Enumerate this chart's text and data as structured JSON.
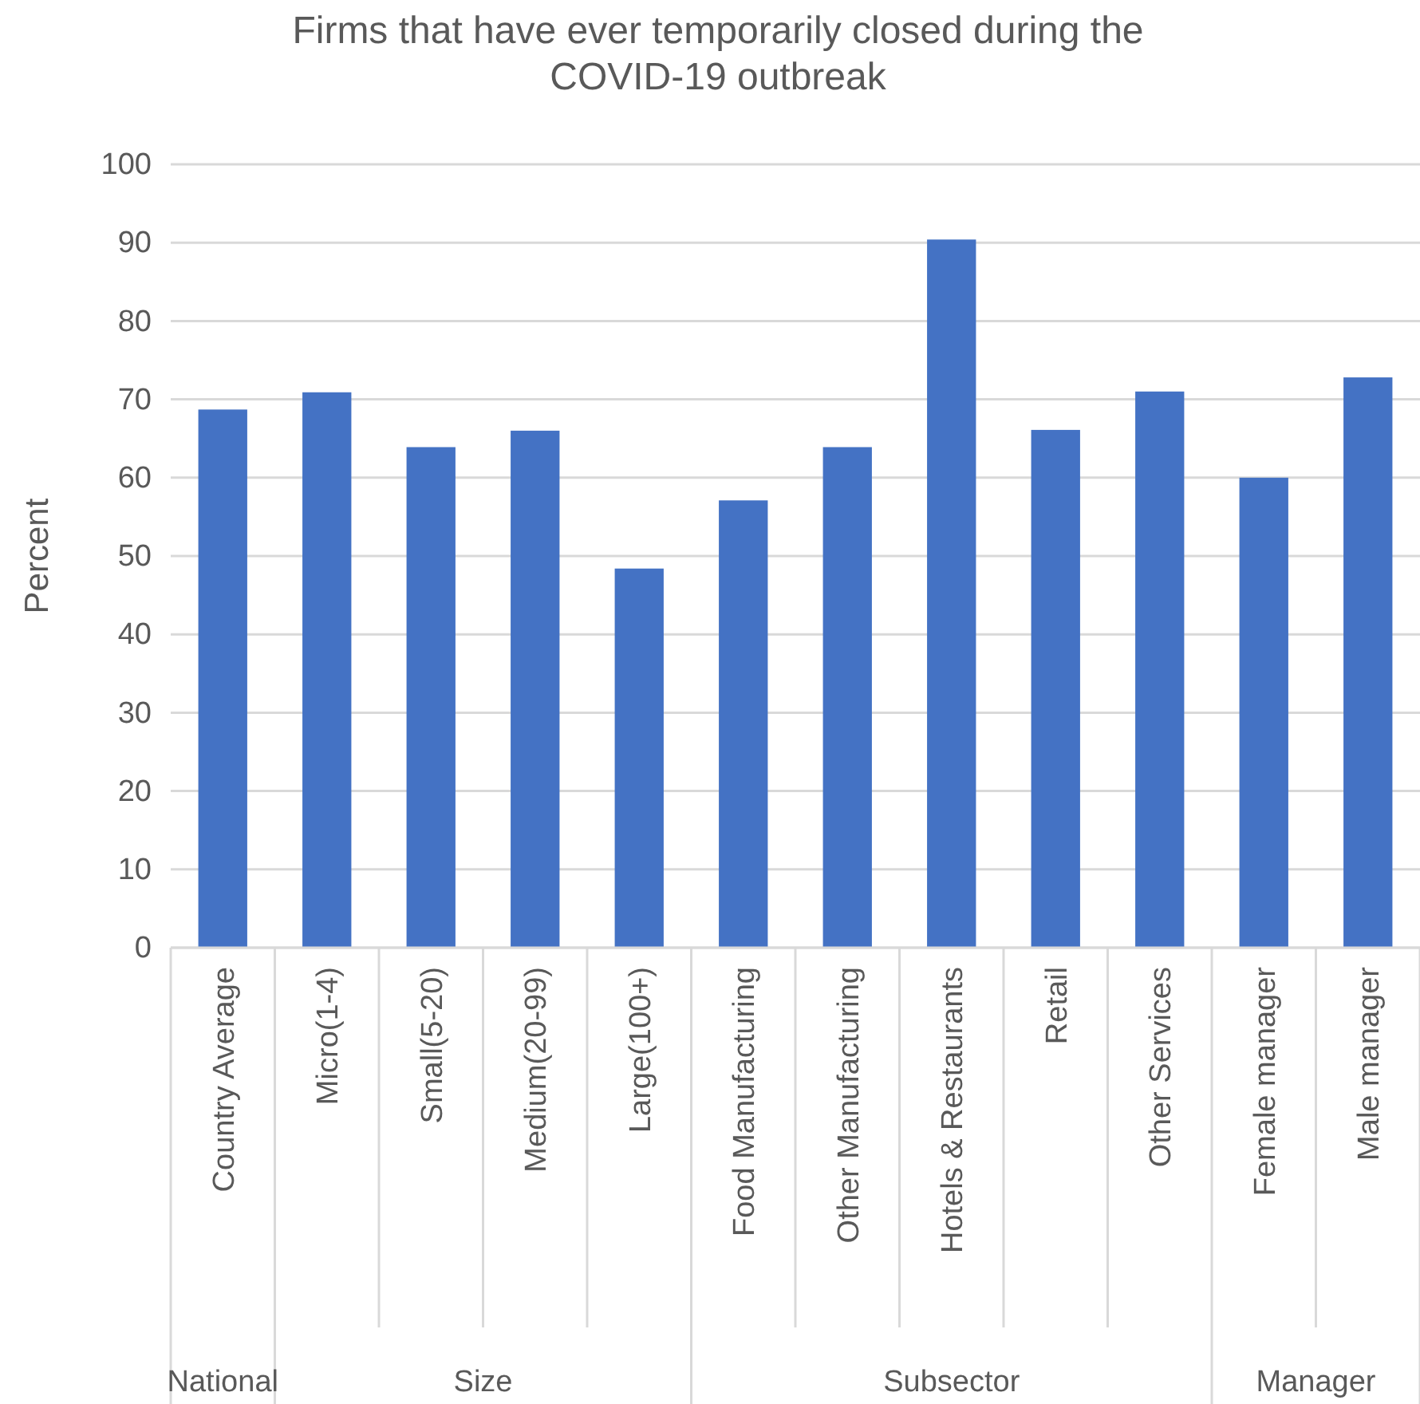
{
  "chart_data": {
    "type": "bar",
    "title": "Firms that have ever temporarily closed during the COVID-19 outbreak",
    "ylabel": "Percent",
    "categories": [
      "Country Average",
      "Micro(1-4)",
      "Small(5-20)",
      "Medium(20-99)",
      "Large(100+)",
      "Food Manufacturing",
      "Other Manufacturing",
      "Hotels & Restaurants",
      "Retail",
      "Other Services",
      "Female manager",
      "Male manager"
    ],
    "values": [
      68.7,
      70.9,
      63.9,
      66.0,
      48.4,
      57.1,
      63.9,
      90.4,
      66.1,
      71.0,
      60.0,
      72.8
    ],
    "color": "#4472c4",
    "ylim": [
      0,
      100
    ],
    "yticks": [
      0,
      10,
      20,
      30,
      40,
      50,
      60,
      70,
      80,
      90,
      100
    ],
    "grid": "y",
    "annotations": [
      "National",
      "Size",
      "Subsector",
      "Manager"
    ]
  }
}
